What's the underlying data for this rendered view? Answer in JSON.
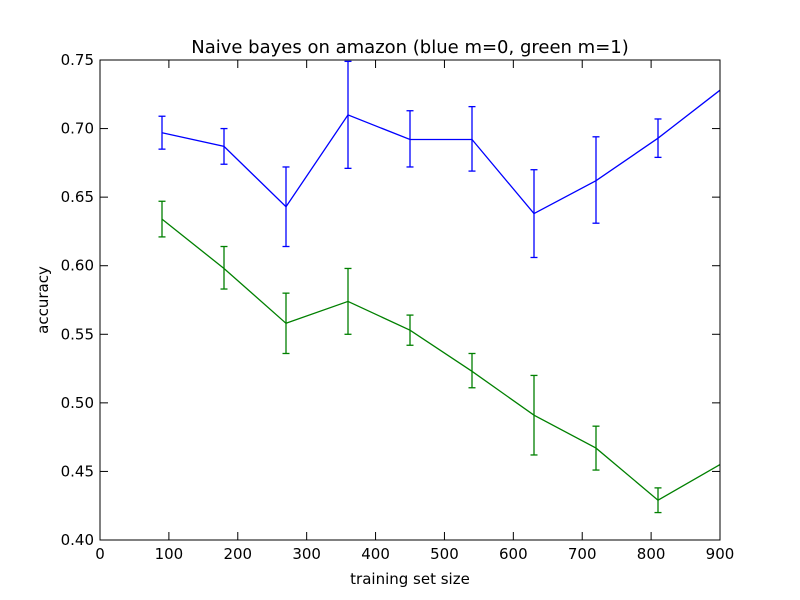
{
  "chart_data": {
    "type": "line",
    "title": "Naive bayes on amazon (blue m=0, green m=1)",
    "xlabel": "training set size",
    "ylabel": "accuracy",
    "xlim": [
      0,
      900
    ],
    "ylim": [
      0.4,
      0.75
    ],
    "xticks": [
      "0",
      "100",
      "200",
      "300",
      "400",
      "500",
      "600",
      "700",
      "800",
      "900"
    ],
    "yticks": [
      "0.40",
      "0.45",
      "0.50",
      "0.55",
      "0.60",
      "0.65",
      "0.70",
      "0.75"
    ],
    "grid": false,
    "x": [
      90,
      180,
      270,
      360,
      450,
      540,
      630,
      720,
      810,
      900
    ],
    "series": [
      {
        "color": "#0000ff",
        "values": [
          0.697,
          0.687,
          0.643,
          0.71,
          0.692,
          0.692,
          0.638,
          0.662,
          0.693,
          0.728
        ],
        "err_low": [
          0.685,
          0.674,
          0.614,
          0.671,
          0.672,
          0.669,
          0.606,
          0.631,
          0.679,
          null
        ],
        "err_high": [
          0.709,
          0.7,
          0.672,
          0.749,
          0.713,
          0.716,
          0.67,
          0.694,
          0.707,
          null
        ]
      },
      {
        "color": "#008000",
        "values": [
          0.634,
          0.598,
          0.558,
          0.574,
          0.553,
          0.523,
          0.491,
          0.467,
          0.429,
          0.455
        ],
        "err_low": [
          0.621,
          0.583,
          0.536,
          0.55,
          0.542,
          0.511,
          0.462,
          0.451,
          0.42,
          null
        ],
        "err_high": [
          0.647,
          0.614,
          0.58,
          0.598,
          0.564,
          0.536,
          0.52,
          0.483,
          0.438,
          null
        ]
      }
    ]
  }
}
